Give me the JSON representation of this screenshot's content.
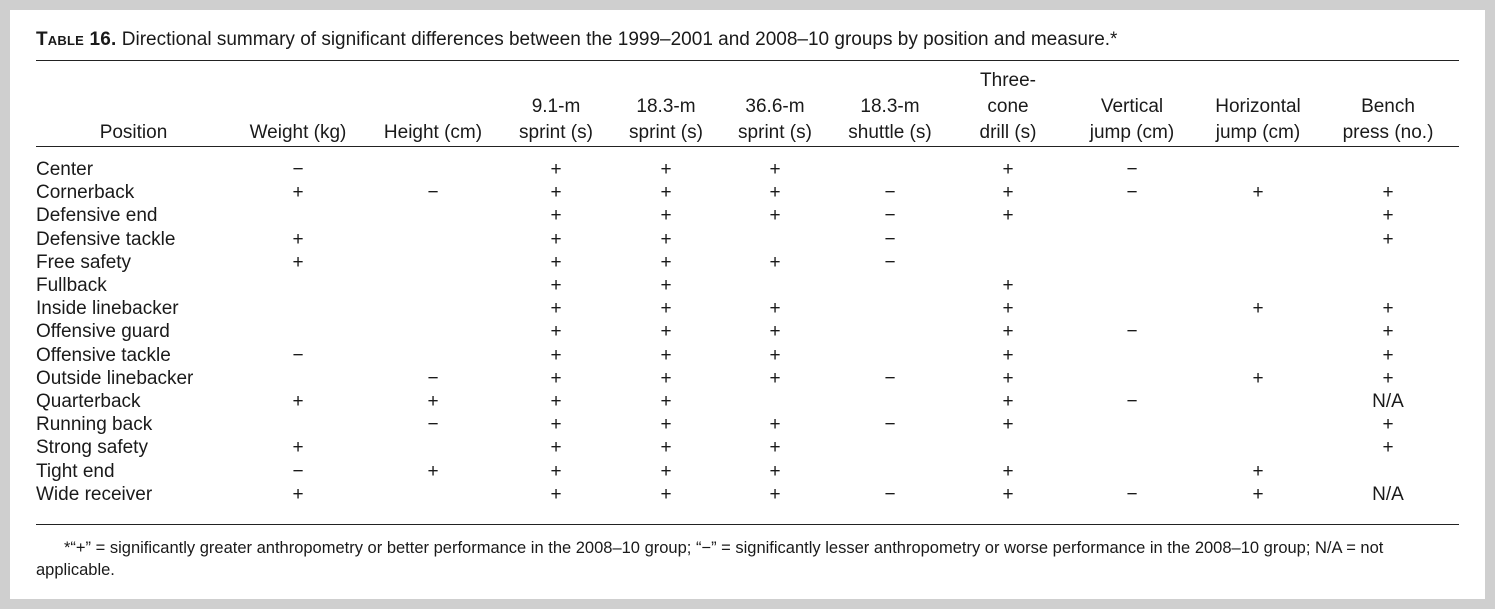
{
  "caption": {
    "label": "Table 16.",
    "text": " Directional summary of significant differences between the 1999–2001 and 2008–10 groups by position and measure.*"
  },
  "headers": [
    [
      "Position"
    ],
    [
      "Weight (kg)"
    ],
    [
      "Height (cm)"
    ],
    [
      "9.1-m",
      "sprint (s)"
    ],
    [
      "18.3-m",
      "sprint (s)"
    ],
    [
      "36.6-m",
      "sprint (s)"
    ],
    [
      "18.3-m",
      "shuttle (s)"
    ],
    [
      "Three-",
      "cone",
      "drill (s)"
    ],
    [
      "Vertical",
      "jump (cm)"
    ],
    [
      "Horizontal",
      "jump (cm)"
    ],
    [
      "Bench",
      "press (no.)"
    ]
  ],
  "rows": [
    [
      "Center",
      "−",
      "",
      "+",
      "+",
      "+",
      "",
      "+",
      "−",
      "",
      ""
    ],
    [
      "Cornerback",
      "+",
      "−",
      "+",
      "+",
      "+",
      "−",
      "+",
      "−",
      "+",
      "+"
    ],
    [
      "Defensive end",
      "",
      "",
      "+",
      "+",
      "+",
      "−",
      "+",
      "",
      "",
      "+"
    ],
    [
      "Defensive tackle",
      "+",
      "",
      "+",
      "+",
      "",
      "−",
      "",
      "",
      "",
      "+"
    ],
    [
      "Free safety",
      "+",
      "",
      "+",
      "+",
      "+",
      "−",
      "",
      "",
      "",
      ""
    ],
    [
      "Fullback",
      "",
      "",
      "+",
      "+",
      "",
      "",
      "+",
      "",
      "",
      ""
    ],
    [
      "Inside linebacker",
      "",
      "",
      "+",
      "+",
      "+",
      "",
      "+",
      "",
      "+",
      "+"
    ],
    [
      "Offensive guard",
      "",
      "",
      "+",
      "+",
      "+",
      "",
      "+",
      "−",
      "",
      "+"
    ],
    [
      "Offensive tackle",
      "−",
      "",
      "+",
      "+",
      "+",
      "",
      "+",
      "",
      "",
      "+"
    ],
    [
      "Outside linebacker",
      "",
      "−",
      "+",
      "+",
      "+",
      "−",
      "+",
      "",
      "+",
      "+"
    ],
    [
      "Quarterback",
      "+",
      "+",
      "+",
      "+",
      "",
      "",
      "+",
      "−",
      "",
      "N/A"
    ],
    [
      "Running back",
      "",
      "−",
      "+",
      "+",
      "+",
      "−",
      "+",
      "",
      "",
      "+"
    ],
    [
      "Strong safety",
      "+",
      "",
      "+",
      "+",
      "+",
      "",
      "",
      "",
      "",
      "+"
    ],
    [
      "Tight end",
      "−",
      "+",
      "+",
      "+",
      "+",
      "",
      "+",
      "",
      "+",
      ""
    ],
    [
      "Wide receiver",
      "+",
      "",
      "+",
      "+",
      "+",
      "−",
      "+",
      "−",
      "+",
      "N/A"
    ]
  ],
  "footnote": "*“+” = significantly greater anthropometry or better performance in the 2008–10 group; “−” = significantly lesser anthropometry or worse performance in the 2008–10 group; N/A = not applicable."
}
